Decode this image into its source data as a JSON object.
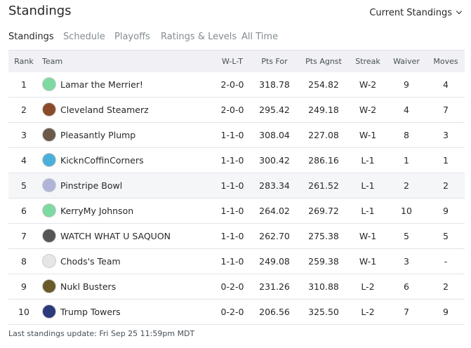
{
  "header": {
    "title": "Standings",
    "dropdown": "Current Standings"
  },
  "tabs": [
    "Standings",
    "Schedule",
    "Playoffs",
    "Ratings & Levels",
    "All Time"
  ],
  "table": {
    "columns": [
      "Rank",
      "Team",
      "W-L-T",
      "Pts For",
      "Pts Agnst",
      "Streak",
      "Waiver",
      "Moves"
    ],
    "rows": [
      [
        "1",
        "Lamar the Merrier!",
        "2-0-0",
        "318.78",
        "254.82",
        "W-2",
        "9",
        "4"
      ],
      [
        "2",
        "Cleveland Steamerz",
        "2-0-0",
        "295.42",
        "249.18",
        "W-2",
        "4",
        "7"
      ],
      [
        "3",
        "Pleasantly Plump",
        "1-1-0",
        "308.04",
        "227.08",
        "W-1",
        "8",
        "3"
      ],
      [
        "4",
        "KicknCoffinCorners",
        "1-1-0",
        "300.42",
        "286.16",
        "L-1",
        "1",
        "1"
      ],
      [
        "5",
        "Pinstripe Bowl",
        "1-1-0",
        "283.34",
        "261.52",
        "L-1",
        "2",
        "2"
      ],
      [
        "6",
        "KerryMy Johnson",
        "1-1-0",
        "264.02",
        "269.72",
        "L-1",
        "10",
        "9"
      ],
      [
        "7",
        "WATCH WHAT U SAQUON",
        "1-1-0",
        "262.70",
        "275.38",
        "W-1",
        "5",
        "5"
      ],
      [
        "8",
        "Chods's Team",
        "1-1-0",
        "249.08",
        "259.38",
        "W-1",
        "3",
        "-"
      ],
      [
        "9",
        "Nukl Busters",
        "0-2-0",
        "231.26",
        "310.88",
        "L-2",
        "6",
        "2"
      ],
      [
        "10",
        "Trump Towers",
        "0-2-0",
        "206.56",
        "325.50",
        "L-2",
        "7",
        "9"
      ]
    ]
  },
  "footer": "Last standings update: Fri Sep 25 11:59pm MDT"
}
